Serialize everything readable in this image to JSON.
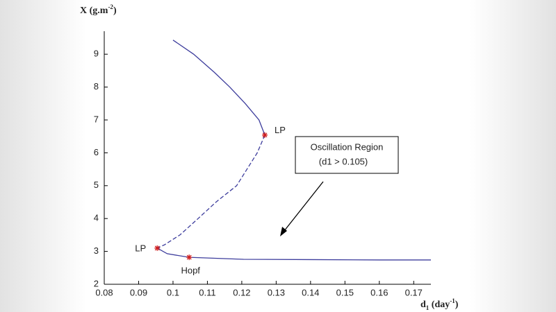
{
  "chart_data": {
    "type": "line",
    "x_label": [
      "d",
      "1",
      " (day",
      "-1",
      ")"
    ],
    "y_label": [
      "X (g.m",
      "-2",
      ")"
    ],
    "xlim": [
      0.08,
      0.175
    ],
    "ylim": [
      2,
      9.7
    ],
    "xticks": [
      0.08,
      0.09,
      0.1,
      0.11,
      0.12,
      0.13,
      0.14,
      0.15,
      0.16,
      0.17
    ],
    "yticks": [
      2,
      3,
      4,
      5,
      6,
      7,
      8,
      9
    ],
    "series": [
      {
        "color": "#3c3c9c",
        "dashed": false,
        "x": [
          0.1,
          0.106,
          0.112,
          0.1165,
          0.121,
          0.125,
          0.1267
        ],
        "values": [
          9.43,
          9.0,
          8.45,
          8.0,
          7.5,
          7.0,
          6.54
        ]
      },
      {
        "color": "#3c3c9c",
        "dashed": true,
        "x": [
          0.1267,
          0.1245,
          0.1185,
          0.1125,
          0.1073,
          0.102,
          0.0975,
          0.0954
        ],
        "values": [
          6.54,
          6.0,
          5.0,
          4.5,
          4.0,
          3.5,
          3.2,
          3.1
        ]
      },
      {
        "color": "#3c3c9c",
        "dashed": false,
        "x": [
          0.0954,
          0.0983,
          0.1047,
          0.1205,
          0.14,
          0.16,
          0.175
        ],
        "values": [
          3.1,
          2.93,
          2.82,
          2.76,
          2.75,
          2.74,
          2.74
        ]
      }
    ],
    "points": [
      {
        "label": "LP",
        "x": 0.1267,
        "y": 6.54,
        "side": "right"
      },
      {
        "label": "LP",
        "x": 0.0954,
        "y": 3.1,
        "side": "left"
      },
      {
        "label": "Hopf",
        "x": 0.1047,
        "y": 2.82,
        "side": "below"
      }
    ],
    "point_color": "#d02020",
    "annotation": {
      "lines": [
        "Oscillation Region",
        "(d1 > 0.105)"
      ]
    }
  }
}
